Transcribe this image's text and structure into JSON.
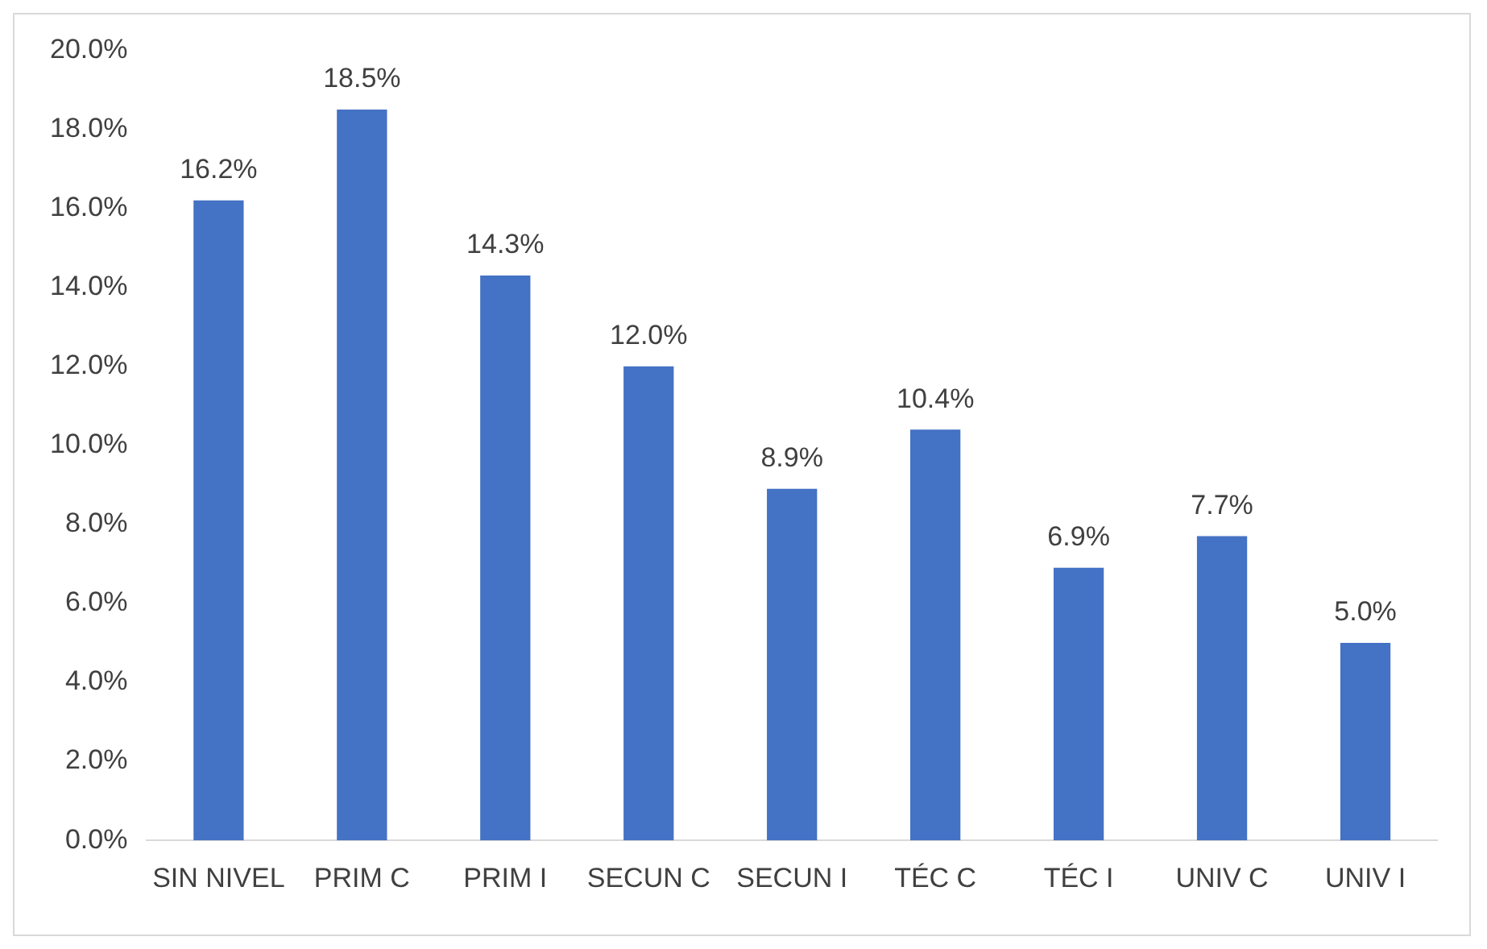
{
  "chart_data": {
    "type": "bar",
    "categories": [
      "SIN NIVEL",
      "PRIM C",
      "PRIM I",
      "SECUN C",
      "SECUN I",
      "TÉC C",
      "TÉC I",
      "UNIV C",
      "UNIV I"
    ],
    "values": [
      16.2,
      18.5,
      14.3,
      12.0,
      8.9,
      10.4,
      6.9,
      7.7,
      5.0
    ],
    "value_labels": [
      "16.2%",
      "18.5%",
      "14.3%",
      "12.0%",
      "8.9%",
      "10.4%",
      "6.9%",
      "7.7%",
      "5.0%"
    ],
    "color": "#4472c4",
    "ylim": [
      0,
      20
    ],
    "yticks": [
      {
        "value": 0,
        "label": "0.0%"
      },
      {
        "value": 2,
        "label": "2.0%"
      },
      {
        "value": 4,
        "label": "4.0%"
      },
      {
        "value": 6,
        "label": "6.0%"
      },
      {
        "value": 8,
        "label": "8.0%"
      },
      {
        "value": 10,
        "label": "10.0%"
      },
      {
        "value": 12,
        "label": "12.0%"
      },
      {
        "value": 14,
        "label": "14.0%"
      },
      {
        "value": 16,
        "label": "16.0%"
      },
      {
        "value": 18,
        "label": "18.0%"
      },
      {
        "value": 20,
        "label": "20.0%"
      }
    ],
    "grid": false,
    "legend": false
  }
}
